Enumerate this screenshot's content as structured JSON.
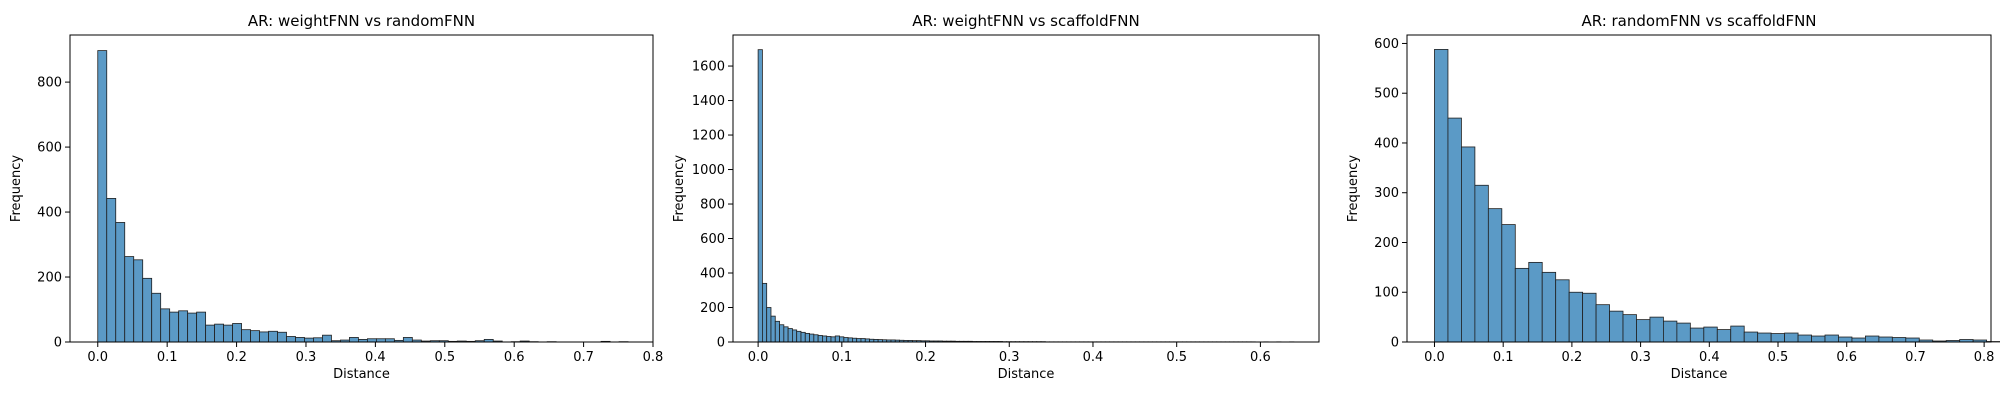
{
  "style": {
    "bar_fill": "#5b9ac6",
    "bar_edge": "#1f1f1f",
    "axis_color": "#000000"
  },
  "chart_data": [
    {
      "type": "bar",
      "title": "AR: weightFNN vs randomFNN",
      "xlabel": "Distance",
      "ylabel": "Frequency",
      "xlim": [
        -0.04,
        0.8
      ],
      "ylim": [
        0,
        945
      ],
      "xticks": [
        0.0,
        0.1,
        0.2,
        0.3,
        0.4,
        0.5,
        0.6,
        0.7,
        0.8
      ],
      "yticks": [
        0,
        200,
        400,
        600,
        800
      ],
      "bin_start": 0.0,
      "bin_width": 0.01295,
      "values": [
        897,
        442,
        368,
        263,
        253,
        196,
        150,
        102,
        92,
        96,
        89,
        92,
        52,
        55,
        52,
        57,
        38,
        35,
        31,
        33,
        30,
        17,
        14,
        12,
        13,
        21,
        4,
        6,
        14,
        8,
        10,
        10,
        10,
        5,
        14,
        6,
        3,
        4,
        4,
        2,
        3,
        2,
        4,
        8,
        3,
        0,
        1,
        3,
        1,
        0,
        1,
        0,
        0,
        0,
        0,
        0,
        2,
        0,
        1,
        0
      ]
    },
    {
      "type": "bar",
      "title": "AR: weightFNN vs scaffoldFNN",
      "xlabel": "Distance",
      "ylabel": "Frequency",
      "xlim": [
        -0.03,
        0.67
      ],
      "ylim": [
        0,
        1780
      ],
      "xticks": [
        0.0,
        0.1,
        0.2,
        0.3,
        0.4,
        0.5,
        0.6
      ],
      "yticks": [
        0,
        200,
        400,
        600,
        800,
        1000,
        1200,
        1400,
        1600
      ],
      "bin_start": 0.0,
      "bin_width": 0.00512,
      "values": [
        1695,
        340,
        200,
        150,
        120,
        100,
        88,
        78,
        70,
        62,
        56,
        50,
        46,
        42,
        38,
        35,
        32,
        30,
        35,
        30,
        26,
        24,
        22,
        20,
        20,
        18,
        16,
        15,
        14,
        13,
        12,
        12,
        11,
        10,
        9,
        9,
        8,
        8,
        7,
        7,
        6,
        6,
        6,
        5,
        5,
        5,
        4,
        4,
        4,
        4,
        3,
        3,
        3,
        3,
        3,
        3,
        3,
        2,
        2,
        2,
        2,
        2,
        2,
        2,
        2,
        2,
        2,
        1,
        1,
        1,
        1,
        1,
        1,
        1,
        1,
        1,
        1,
        1,
        1,
        1,
        1,
        1,
        1,
        1,
        1,
        1,
        1,
        1,
        1,
        1,
        1,
        1,
        1,
        1,
        1,
        1,
        1,
        1,
        1,
        1,
        1,
        1,
        1,
        1,
        1,
        1,
        1,
        1,
        1,
        1,
        1,
        1,
        1,
        1,
        1,
        1,
        0,
        0,
        1,
        0,
        0,
        1,
        0,
        0,
        1
      ]
    },
    {
      "type": "bar",
      "title": "AR: randomFNN vs scaffoldFNN",
      "xlabel": "Distance",
      "ylabel": "Frequency",
      "xlim": [
        -0.04,
        0.81
      ],
      "ylim": [
        0,
        617
      ],
      "xticks": [
        0.0,
        0.1,
        0.2,
        0.3,
        0.4,
        0.5,
        0.6,
        0.7,
        0.8
      ],
      "yticks": [
        0,
        100,
        200,
        300,
        400,
        500,
        600
      ],
      "bin_start": 0.0,
      "bin_width": 0.0196,
      "values": [
        588,
        450,
        392,
        315,
        268,
        236,
        148,
        160,
        140,
        125,
        100,
        98,
        75,
        62,
        55,
        45,
        50,
        42,
        38,
        28,
        30,
        25,
        32,
        20,
        18,
        17,
        18,
        14,
        12,
        14,
        10,
        8,
        12,
        10,
        9,
        8,
        4,
        2,
        3,
        5,
        4,
        1,
        0,
        1,
        0
      ]
    }
  ]
}
